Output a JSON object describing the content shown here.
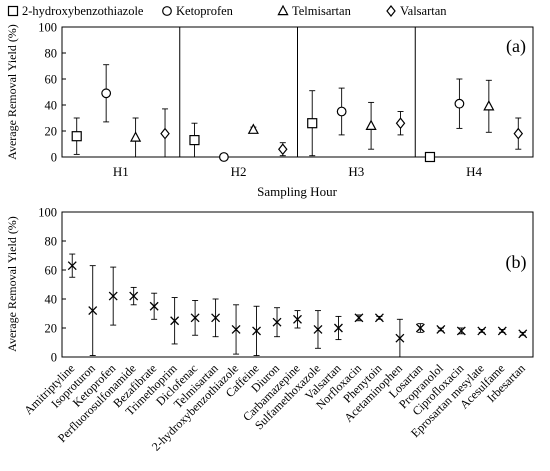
{
  "chart_data": [
    {
      "type": "scatter",
      "panel_label": "(a)",
      "xlabel": "Sampling Hour",
      "ylabel": "Average Removal Yield  (%)",
      "categories": [
        "H1",
        "H2",
        "H3",
        "H4"
      ],
      "ylim": [
        0,
        100
      ],
      "yticks": [
        0,
        20,
        40,
        60,
        80,
        100
      ],
      "legend_position": "top",
      "series": [
        {
          "name": "2-hydroxybenzothiazole",
          "marker": "square",
          "values": [
            16,
            13,
            26,
            0
          ],
          "err": [
            14,
            13,
            25,
            0
          ]
        },
        {
          "name": "Ketoprofen",
          "marker": "circle",
          "values": [
            49,
            0,
            35,
            41
          ],
          "err": [
            22,
            0,
            18,
            19
          ]
        },
        {
          "name": "Telmisartan",
          "marker": "triangle",
          "values": [
            15,
            21,
            24,
            39
          ],
          "err": [
            15,
            2,
            18,
            20
          ]
        },
        {
          "name": "Valsartan",
          "marker": "diamond",
          "values": [
            18,
            6,
            26,
            18
          ],
          "err": [
            19,
            5,
            9,
            12
          ]
        }
      ]
    },
    {
      "type": "scatter",
      "panel_label": "(b)",
      "xlabel": "",
      "ylabel": "Average Removal Yield  (%)",
      "ylim": [
        0,
        100
      ],
      "yticks": [
        0,
        20,
        40,
        60,
        80,
        100
      ],
      "marker": "x",
      "categories": [
        "Amitriptyline",
        "Isoproturon",
        "Ketoprofen",
        "Perfluorosulfonamide",
        "Bezafibrate",
        "Trimethoprim",
        "Diclofenac",
        "Telmisartan",
        "2-hydroxybenzothiazole",
        "Caffeine",
        "Diuron",
        "Carbamazepine",
        "Sulfamethoxazole",
        "Valsartan",
        "Norfloxacin",
        "Phenytoin",
        "Acetaminophen",
        "Losartan",
        "Propranolol",
        "Ciprofloxacin",
        "Eprosartan mesylate",
        "Acesulfame",
        "Irbesartan"
      ],
      "values": [
        63,
        32,
        42,
        42,
        35,
        25,
        27,
        27,
        19,
        18,
        24,
        26,
        19,
        20,
        27,
        27,
        13,
        20,
        19,
        18,
        18,
        18,
        16
      ],
      "err": [
        8,
        31,
        20,
        6,
        9,
        16,
        12,
        13,
        17,
        17,
        10,
        6,
        13,
        8,
        2,
        1,
        13,
        3,
        1,
        2,
        1,
        1,
        1
      ]
    }
  ]
}
